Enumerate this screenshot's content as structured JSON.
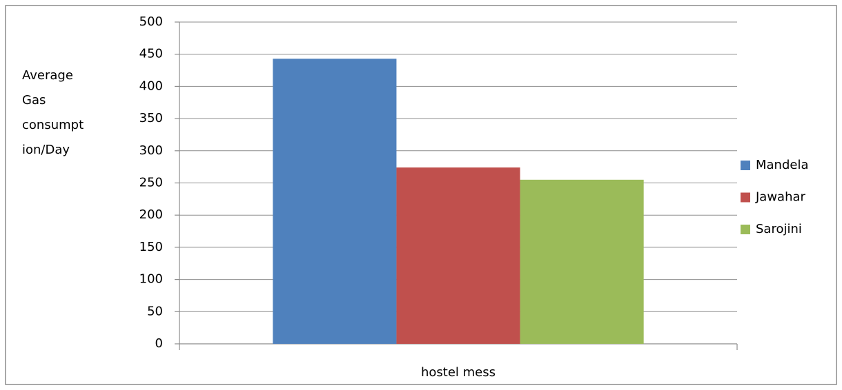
{
  "chart_data": {
    "type": "bar",
    "ylabel": [
      "Average",
      "Gas",
      "consumpt",
      "ion/Day"
    ],
    "xlabel": "hostel mess",
    "categories": [
      null
    ],
    "series": [
      {
        "name": "Mandela",
        "color": "#4f81bd",
        "values": [
          443
        ]
      },
      {
        "name": "Jawahar",
        "color": "#c0504d",
        "values": [
          274
        ]
      },
      {
        "name": "Sarojini",
        "color": "#9bbb59",
        "values": [
          255
        ]
      }
    ],
    "ylim": [
      0,
      500
    ],
    "yticks": [
      0,
      50,
      100,
      150,
      200,
      250,
      300,
      350,
      400,
      450,
      500
    ],
    "grid": true,
    "legend": "right"
  }
}
